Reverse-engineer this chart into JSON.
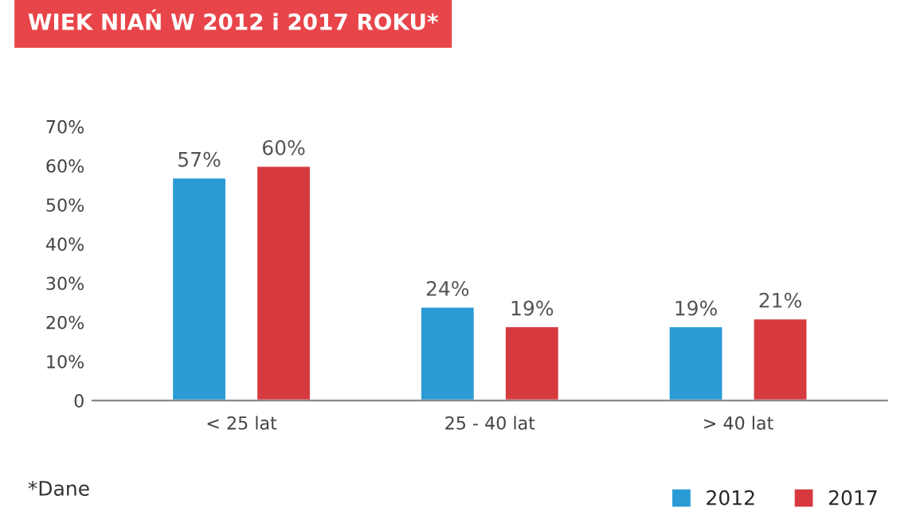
{
  "chart_data": {
    "type": "bar",
    "title": "WIEK NIAŃ W 2012 i 2017 ROKU*",
    "categories": [
      "< 25 lat",
      "25 - 40 lat",
      "> 40 lat"
    ],
    "series": [
      {
        "name": "2012",
        "color": "#2a9bd4",
        "values": [
          57,
          24,
          19
        ]
      },
      {
        "name": "2017",
        "color": "#d63a3f",
        "values": [
          60,
          19,
          21
        ]
      }
    ],
    "value_labels": [
      [
        "57%",
        "24%",
        "19%"
      ],
      [
        "60%",
        "19%",
        "21%"
      ]
    ],
    "ylim": [
      0,
      70
    ],
    "yticks": [
      0,
      {
        "value": 10,
        "label": "10%"
      },
      {
        "value": 20,
        "label": "20%"
      },
      {
        "value": 30,
        "label": "30%"
      },
      {
        "value": 40,
        "label": "40%"
      },
      {
        "value": 50,
        "label": "50%"
      },
      {
        "value": 60,
        "label": "60%"
      },
      {
        "value": 70,
        "label": "70%"
      }
    ],
    "grid": false,
    "legend": "bottom right",
    "annotations": [
      "*Dane"
    ]
  }
}
